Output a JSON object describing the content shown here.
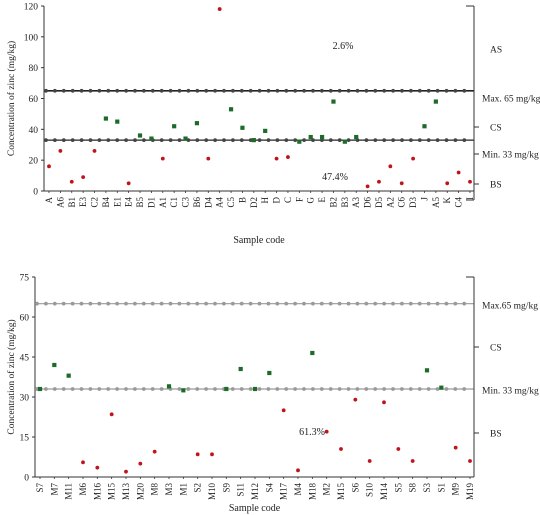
{
  "chart_data": [
    {
      "type": "scatter",
      "xlabel": "Sample code",
      "ylabel": "Concentration of zinc (mg/kg)",
      "ylim": [
        0,
        120
      ],
      "yticks": [
        0,
        20,
        40,
        60,
        80,
        100,
        120
      ],
      "grid": false,
      "categories": [
        "A",
        "A6",
        "B1",
        "E3",
        "C2",
        "B4",
        "E1",
        "E4",
        "B5",
        "D1",
        "A1",
        "C1",
        "C3",
        "B6",
        "D4",
        "A4",
        "C5",
        "B",
        "D2",
        "H",
        "D",
        "C",
        "F",
        "G",
        "E",
        "B2",
        "B3",
        "A3",
        "D6",
        "D5",
        "A2",
        "C6",
        "D3",
        "J",
        "A5",
        "K",
        "C4",
        "I"
      ],
      "series": [
        {
          "class": "BS",
          "color": "#c0141a",
          "points": [
            {
              "x": "A",
              "y": 16
            },
            {
              "x": "A6",
              "y": 26
            },
            {
              "x": "B1",
              "y": 6
            },
            {
              "x": "E3",
              "y": 9
            },
            {
              "x": "C2",
              "y": 26
            },
            {
              "x": "E4",
              "y": 5
            },
            {
              "x": "A1",
              "y": 21
            },
            {
              "x": "D4",
              "y": 21
            },
            {
              "x": "A4",
              "y": 118
            },
            {
              "x": "D",
              "y": 21
            },
            {
              "x": "C",
              "y": 22
            },
            {
              "x": "D6",
              "y": 3
            },
            {
              "x": "D5",
              "y": 6
            },
            {
              "x": "A2",
              "y": 16
            },
            {
              "x": "C6",
              "y": 5
            },
            {
              "x": "D3",
              "y": 21
            },
            {
              "x": "K",
              "y": 5
            },
            {
              "x": "C4",
              "y": 12
            },
            {
              "x": "I",
              "y": 6
            }
          ]
        },
        {
          "class": "CS",
          "color": "#1d6b2b",
          "points": [
            {
              "x": "B4",
              "y": 47
            },
            {
              "x": "E1",
              "y": 45
            },
            {
              "x": "B5",
              "y": 36
            },
            {
              "x": "D1",
              "y": 34
            },
            {
              "x": "C1",
              "y": 42
            },
            {
              "x": "C3",
              "y": 34
            },
            {
              "x": "B6",
              "y": 44
            },
            {
              "x": "C5",
              "y": 53
            },
            {
              "x": "B",
              "y": 41
            },
            {
              "x": "D2",
              "y": 33
            },
            {
              "x": "H",
              "y": 39
            },
            {
              "x": "F",
              "y": 32
            },
            {
              "x": "G",
              "y": 35
            },
            {
              "x": "E",
              "y": 35
            },
            {
              "x": "B2",
              "y": 58
            },
            {
              "x": "B3",
              "y": 32
            },
            {
              "x": "A3",
              "y": 35
            },
            {
              "x": "J",
              "y": 42
            },
            {
              "x": "A5",
              "y": 58
            }
          ]
        }
      ],
      "ref_lines": [
        {
          "y": 65,
          "label": "Max. 65 mg/kg"
        },
        {
          "y": 33,
          "label": "Min. 33 mg/kg"
        }
      ],
      "annotations": [
        {
          "text": "2.6%",
          "x": "C",
          "y": 93
        },
        {
          "text": "47.4%",
          "x": "G",
          "y": 17
        }
      ],
      "bracket_labels": [
        {
          "text": "AS",
          "y": 92
        },
        {
          "text": "CS",
          "y": 49
        },
        {
          "text": "BS",
          "y": 16
        }
      ]
    },
    {
      "type": "scatter",
      "xlabel": "Sample code",
      "ylabel": "Concentration of zinc (mg/kg)",
      "ylim": [
        0,
        75
      ],
      "yticks": [
        0,
        15,
        30,
        45,
        60,
        75
      ],
      "grid": false,
      "categories": [
        "S7",
        "M7",
        "M11",
        "M6",
        "M16",
        "M15",
        "M13",
        "M20",
        "M8",
        "M3",
        "M1",
        "S2",
        "M10",
        "S9",
        "S11",
        "M12",
        "S4",
        "M17",
        "M4",
        "M18",
        "M2",
        "M15",
        "S6",
        "S10",
        "M14",
        "S5",
        "S8",
        "S3",
        "S1",
        "M9",
        "M19"
      ],
      "series": [
        {
          "class": "BS",
          "color": "#c0141a",
          "points": [
            {
              "x": 3,
              "y": 5.5
            },
            {
              "x": 4,
              "y": 3.5
            },
            {
              "x": 5,
              "y": 23.5
            },
            {
              "x": 6,
              "y": 2
            },
            {
              "x": 7,
              "y": 5
            },
            {
              "x": 8,
              "y": 9.5
            },
            {
              "x": 11,
              "y": 8.5
            },
            {
              "x": 12,
              "y": 8.5
            },
            {
              "x": 17,
              "y": 25
            },
            {
              "x": 18,
              "y": 2.5
            },
            {
              "x": 20,
              "y": 17
            },
            {
              "x": 21,
              "y": 10.5
            },
            {
              "x": 22,
              "y": 29
            },
            {
              "x": 23,
              "y": 6
            },
            {
              "x": 24,
              "y": 28
            },
            {
              "x": 25,
              "y": 10.5
            },
            {
              "x": 26,
              "y": 6
            },
            {
              "x": 29,
              "y": 11
            },
            {
              "x": 30,
              "y": 6
            }
          ]
        },
        {
          "class": "CS",
          "color": "#1d6b2b",
          "points": [
            {
              "x": 0,
              "y": 33
            },
            {
              "x": 1,
              "y": 42
            },
            {
              "x": 2,
              "y": 38
            },
            {
              "x": 9,
              "y": 34
            },
            {
              "x": 10,
              "y": 32.5
            },
            {
              "x": 13,
              "y": 33
            },
            {
              "x": 14,
              "y": 40.5
            },
            {
              "x": 15,
              "y": 33
            },
            {
              "x": 16,
              "y": 39
            },
            {
              "x": 19,
              "y": 46.5
            },
            {
              "x": 27,
              "y": 40
            },
            {
              "x": 28,
              "y": 33.5
            }
          ]
        }
      ],
      "ref_lines": [
        {
          "y": 65,
          "label": "Max.65 mg/kg"
        },
        {
          "y": 33,
          "label": "Min. 33 mg/kg"
        }
      ],
      "annotations": [
        {
          "text": "61.3%",
          "x": 19,
          "y": 17
        }
      ],
      "bracket_labels": [
        {
          "text": "CS",
          "y": 48
        },
        {
          "text": "BS",
          "y": 17
        }
      ]
    }
  ]
}
